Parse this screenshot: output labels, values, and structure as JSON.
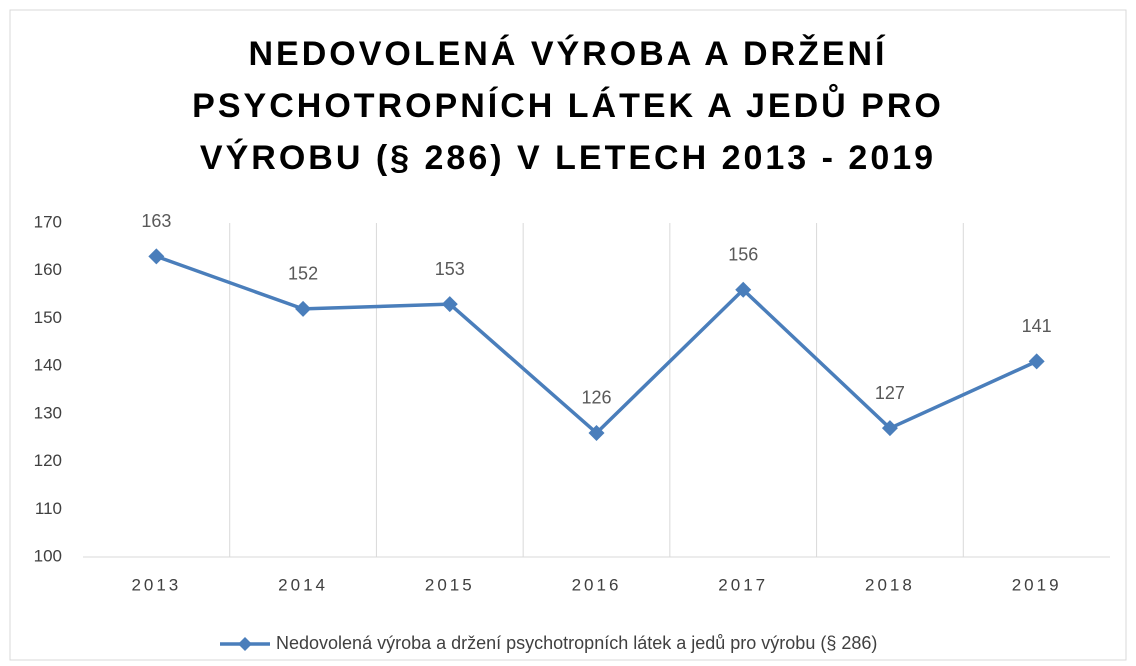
{
  "chart_data": {
    "type": "line",
    "title": "NEDOVOLENÁ VÝROBA A DRŽENÍ PSYCHOTROPNÍCH LÁTEK A JEDŮ PRO VÝROBU (§ 286) V LETECH 2013 - 2019",
    "categories": [
      "2013",
      "2014",
      "2015",
      "2016",
      "2017",
      "2018",
      "2019"
    ],
    "series": [
      {
        "name": "Nedovolená výroba a držení psychotropních látek a jedů pro výrobu (§ 286)",
        "color": "#4a7ebb",
        "values": [
          163,
          152,
          153,
          126,
          156,
          127,
          141
        ]
      }
    ],
    "ylim": [
      100,
      170
    ],
    "yticks": [
      100,
      110,
      120,
      130,
      140,
      150,
      160,
      170
    ],
    "category_grid": true,
    "data_labels": true,
    "legend": "bottom"
  }
}
